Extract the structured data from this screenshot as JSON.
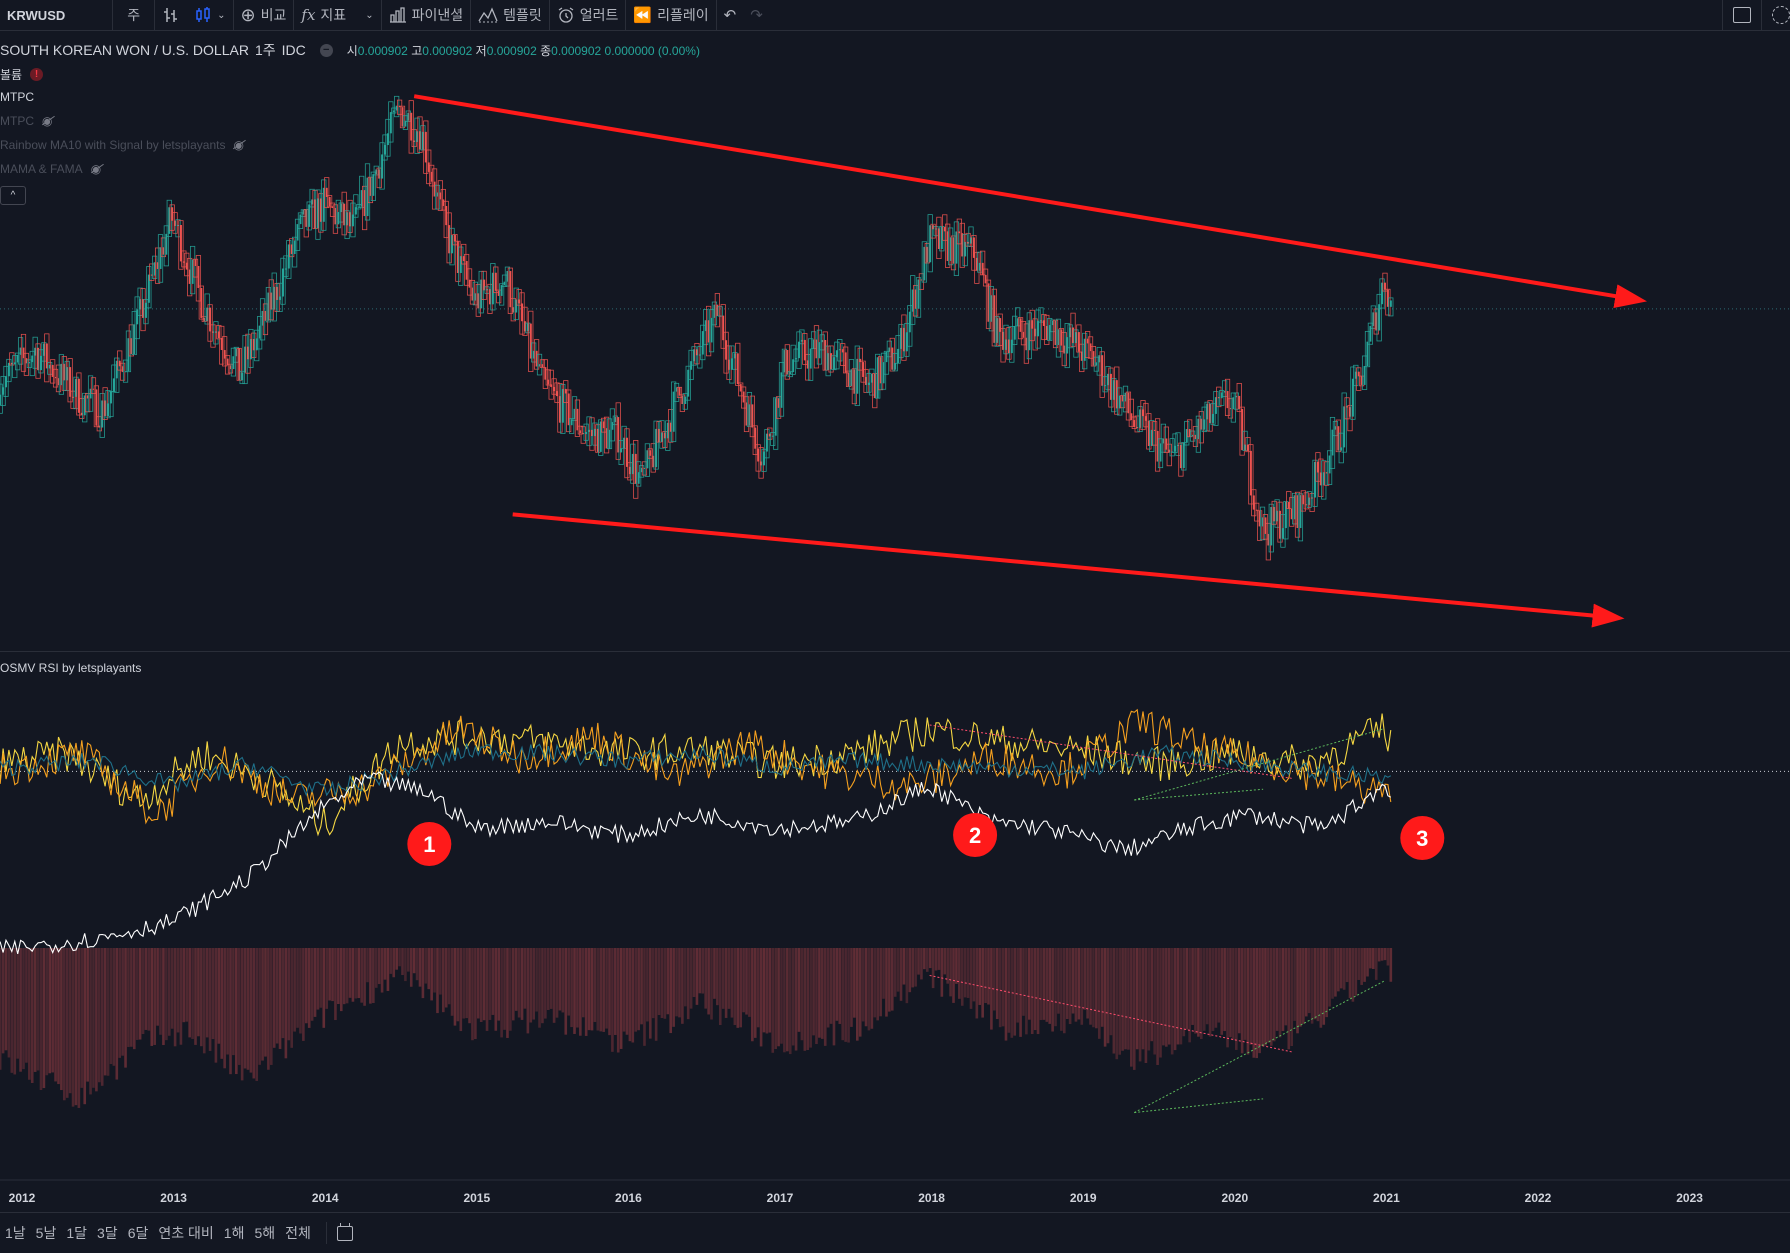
{
  "toolbar": {
    "symbol": "KRWUSD",
    "interval": "주",
    "compare": "비교",
    "indicators": "지표",
    "financials": "파이낸셜",
    "templates": "템플릿",
    "alert": "얼러트",
    "replay": "리플레이",
    "icons": [
      "bar-style-icon",
      "candles-icon",
      "plus-circle-icon",
      "fx-icon",
      "financials-icon",
      "templates-icon",
      "alarm-icon",
      "rewind-icon",
      "undo-icon",
      "redo-icon",
      "layout-box-icon",
      "dashed-circle-icon"
    ]
  },
  "legend": {
    "title": "SOUTH KOREAN WON / U.S. DOLLAR",
    "interval": "1주",
    "exchange": "IDC",
    "open_label": "시",
    "open": "0.000902",
    "high_label": "고",
    "high": "0.000902",
    "low_label": "저",
    "low": "0.000902",
    "close_label": "종",
    "close": "0.000902",
    "change": "0.000000 (0.00%)"
  },
  "indicators": [
    {
      "label": "볼륨",
      "status": "warning"
    },
    {
      "label": "MTPC",
      "status": "active"
    },
    {
      "label": "MTPC",
      "status": "hidden"
    },
    {
      "label": "Rainbow MA10 with Signal by letsplayants",
      "status": "hidden"
    },
    {
      "label": "MAMA & FAMA",
      "status": "hidden"
    }
  ],
  "collapse_glyph": "^",
  "sub_pane": {
    "title": "OSMV RSI by letsplayants"
  },
  "annotations": [
    "1",
    "2",
    "3"
  ],
  "colors": {
    "background": "#131722",
    "up": "#26a69a",
    "down": "#ef5350",
    "trend_arrow": "#ff1a1a",
    "badge": "#ff1a1a",
    "rsi_yellow": "#f5d743",
    "rsi_orange": "#f5a01f",
    "rsi_teal": "#1f6f88",
    "histogram": "#6b3038"
  },
  "chart_data": {
    "type": "candlestick",
    "x_axis_labels": [
      "2012",
      "2013",
      "2014",
      "2015",
      "2016",
      "2017",
      "2018",
      "2019",
      "2020",
      "2021",
      "2022",
      "2023"
    ],
    "period": "weekly",
    "price_close_path": [
      [
        2011.85,
        0.00087
      ],
      [
        2012.1,
        0.000885
      ],
      [
        2012.4,
        0.000865
      ],
      [
        2012.55,
        0.00086
      ],
      [
        2012.8,
        0.0009
      ],
      [
        2013.0,
        0.00094
      ],
      [
        2013.2,
        0.000905
      ],
      [
        2013.45,
        0.000875
      ],
      [
        2013.6,
        0.000895
      ],
      [
        2013.85,
        0.000935
      ],
      [
        2014.0,
        0.000945
      ],
      [
        2014.2,
        0.000935
      ],
      [
        2014.5,
        0.000985
      ],
      [
        2014.65,
        0.000975
      ],
      [
        2014.8,
        0.000935
      ],
      [
        2015.0,
        0.000905
      ],
      [
        2015.2,
        0.000915
      ],
      [
        2015.45,
        0.00087
      ],
      [
        2015.75,
        0.00085
      ],
      [
        2015.95,
        0.00085
      ],
      [
        2016.1,
        0.00083
      ],
      [
        2016.3,
        0.00086
      ],
      [
        2016.6,
        0.0009
      ],
      [
        2016.9,
        0.00084
      ],
      [
        2017.05,
        0.00088
      ],
      [
        2017.3,
        0.000885
      ],
      [
        2017.6,
        0.00087
      ],
      [
        2017.8,
        0.000885
      ],
      [
        2018.0,
        0.00093
      ],
      [
        2018.3,
        0.000925
      ],
      [
        2018.45,
        0.00089
      ],
      [
        2018.8,
        0.000895
      ],
      [
        2019.1,
        0.00088
      ],
      [
        2019.35,
        0.000855
      ],
      [
        2019.6,
        0.00084
      ],
      [
        2019.9,
        0.00086
      ],
      [
        2020.0,
        0.000865
      ],
      [
        2020.2,
        0.00081
      ],
      [
        2020.45,
        0.00082
      ],
      [
        2020.7,
        0.00085
      ],
      [
        2020.85,
        0.000875
      ],
      [
        2021.0,
        0.000915
      ],
      [
        2021.05,
        0.000902
      ]
    ],
    "current_price": 0.000902,
    "trend_channel": {
      "upper": [
        [
          2014.6,
          0.00099
        ],
        [
          2022.55,
          0.000907
        ]
      ],
      "lower": [
        [
          2015.25,
          0.000817
        ],
        [
          2022.4,
          0.000775
        ]
      ]
    },
    "rsi_pane": {
      "series": [
        {
          "values": [
            [
              2011.85,
              52
            ],
            [
              2012.3,
              55
            ],
            [
              2012.8,
              42
            ],
            [
              2013.2,
              55
            ],
            [
              2013.6,
              48
            ],
            [
              2014.0,
              35
            ],
            [
              2014.5,
              58
            ],
            [
              2015.0,
              60
            ],
            [
              2015.5,
              58
            ],
            [
              2016.0,
              55
            ],
            [
              2016.5,
              56
            ],
            [
              2017.0,
              52
            ],
            [
              2017.5,
              55
            ],
            [
              2018.0,
              62
            ],
            [
              2018.5,
              58
            ],
            [
              2019.0,
              56
            ],
            [
              2019.5,
              52
            ],
            [
              2020.0,
              55
            ],
            [
              2020.5,
              52
            ],
            [
              2021.0,
              62
            ],
            [
              2021.05,
              58
            ]
          ]
        },
        {
          "values": [
            [
              2011.85,
              50
            ],
            [
              2012.4,
              55
            ],
            [
              2012.9,
              38
            ],
            [
              2013.3,
              54
            ],
            [
              2013.8,
              42
            ],
            [
              2014.3,
              46
            ],
            [
              2014.9,
              62
            ],
            [
              2015.3,
              54
            ],
            [
              2015.8,
              60
            ],
            [
              2016.3,
              48
            ],
            [
              2016.8,
              58
            ],
            [
              2017.3,
              50
            ],
            [
              2017.9,
              46
            ],
            [
              2018.4,
              54
            ],
            [
              2018.9,
              50
            ],
            [
              2019.4,
              64
            ],
            [
              2019.8,
              56
            ],
            [
              2020.3,
              52
            ],
            [
              2020.8,
              46
            ],
            [
              2021.05,
              44
            ]
          ]
        },
        {
          "values": [
            [
              2011.85,
              51
            ],
            [
              2012.5,
              53
            ],
            [
              2013.0,
              46
            ],
            [
              2013.5,
              52
            ],
            [
              2014.0,
              44
            ],
            [
              2014.5,
              50
            ],
            [
              2015.0,
              56
            ],
            [
              2015.5,
              55
            ],
            [
              2016.0,
              53
            ],
            [
              2016.5,
              55
            ],
            [
              2017.0,
              51
            ],
            [
              2017.5,
              53
            ],
            [
              2018.0,
              52
            ],
            [
              2018.5,
              51
            ],
            [
              2019.0,
              50
            ],
            [
              2019.5,
              55
            ],
            [
              2020.0,
              53
            ],
            [
              2020.5,
              50
            ],
            [
              2021.05,
              48
            ]
          ]
        },
        {
          "values": [
            [
              2011.85,
              0
            ],
            [
              2012.5,
              3
            ],
            [
              2013.0,
              8
            ],
            [
              2013.5,
              20
            ],
            [
              2014.0,
              40
            ],
            [
              2014.3,
              48
            ],
            [
              2014.7,
              44
            ],
            [
              2015.0,
              34
            ],
            [
              2015.5,
              36
            ],
            [
              2016.0,
              32
            ],
            [
              2016.5,
              38
            ],
            [
              2017.0,
              34
            ],
            [
              2017.5,
              36
            ],
            [
              2018.0,
              46
            ],
            [
              2018.4,
              36
            ],
            [
              2018.8,
              34
            ],
            [
              2019.3,
              28
            ],
            [
              2019.7,
              34
            ],
            [
              2020.1,
              38
            ],
            [
              2020.6,
              34
            ],
            [
              2021.0,
              46
            ],
            [
              2021.05,
              42
            ]
          ]
        }
      ],
      "divergence_lines": [
        [
          [
            2018.0,
            63
          ],
          [
            2020.4,
            48
          ]
        ],
        [
          [
            2019.35,
            42
          ],
          [
            2020.2,
            45
          ]
        ],
        [
          [
            2019.35,
            42
          ],
          [
            2021.0,
            62
          ]
        ]
      ],
      "histogram_envelope": [
        [
          2011.85,
          -40
        ],
        [
          2012.4,
          -55
        ],
        [
          2012.8,
          -35
        ],
        [
          2013.1,
          -30
        ],
        [
          2013.5,
          -48
        ],
        [
          2014.0,
          -25
        ],
        [
          2014.5,
          -10
        ],
        [
          2015.0,
          -30
        ],
        [
          2015.5,
          -25
        ],
        [
          2016.0,
          -35
        ],
        [
          2016.5,
          -20
        ],
        [
          2017.0,
          -35
        ],
        [
          2017.5,
          -30
        ],
        [
          2018.0,
          -10
        ],
        [
          2018.5,
          -30
        ],
        [
          2019.0,
          -25
        ],
        [
          2019.35,
          -42
        ],
        [
          2019.8,
          -30
        ],
        [
          2020.2,
          -38
        ],
        [
          2020.6,
          -25
        ],
        [
          2021.0,
          -5
        ],
        [
          2021.05,
          -12
        ]
      ]
    },
    "badge_positions": [
      [
        2014.7,
        0
      ],
      [
        2018.3,
        0
      ],
      [
        2021.25,
        0
      ]
    ]
  }
}
